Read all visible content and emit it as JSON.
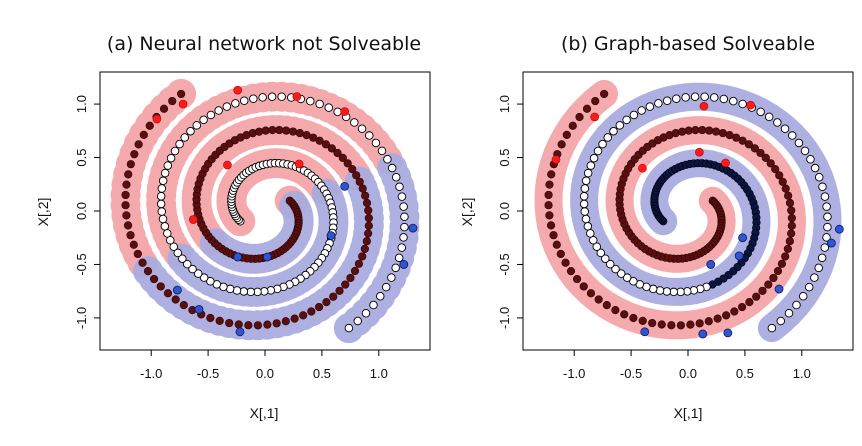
{
  "chart_data": [
    {
      "type": "scatter",
      "title": "(a) Neural network not Solveable",
      "xlabel": "X[,1]",
      "ylabel": "X[,2]",
      "xlim": [
        -1.45,
        1.45
      ],
      "ylim": [
        -1.3,
        1.3
      ],
      "xticks": [
        "-1.0",
        "-0.5",
        "0.0",
        "0.5",
        "1.0"
      ],
      "yticks": [
        "-1.0",
        "-0.5",
        "0.0",
        "0.5",
        "1.0"
      ],
      "xtick_values": [
        -1.0,
        -0.5,
        0.0,
        0.5,
        1.0
      ],
      "ytick_values": [
        -1.0,
        -0.5,
        0.0,
        0.5,
        1.0
      ],
      "region_rule": "linear",
      "region_colors": {
        "class_A": "#f4a6a9",
        "class_B": "#a9acdf"
      },
      "spiral_params": {
        "turns_A": 2.1,
        "turns_B": 2.1,
        "n": 140
      },
      "labeled_A": [
        [
          -0.95,
          0.86
        ],
        [
          -0.72,
          1.0
        ],
        [
          -0.24,
          1.13
        ],
        [
          0.28,
          1.07
        ],
        [
          0.7,
          0.93
        ],
        [
          0.3,
          0.44
        ],
        [
          -0.33,
          0.43
        ],
        [
          -0.63,
          -0.08
        ]
      ],
      "labeled_B": [
        [
          -0.77,
          -0.74
        ],
        [
          -0.58,
          -0.92
        ],
        [
          -0.22,
          -1.13
        ],
        [
          0.7,
          0.23
        ],
        [
          0.58,
          -0.23
        ],
        [
          1.22,
          -0.5
        ],
        [
          1.3,
          -0.16
        ],
        [
          0.02,
          -0.43
        ],
        [
          -0.24,
          -0.43
        ]
      ],
      "series": [
        {
          "name": "A",
          "color": "#5a0e0e",
          "marker": "filled"
        },
        {
          "name": "B",
          "color": "#000000",
          "marker": "open"
        }
      ]
    },
    {
      "type": "scatter",
      "title": "(b) Graph-based Solveable",
      "xlabel": "X[,1]",
      "ylabel": "X[,2]",
      "xlim": [
        -1.45,
        1.45
      ],
      "ylim": [
        -1.3,
        1.3
      ],
      "xticks": [
        "-1.0",
        "-0.5",
        "0.0",
        "0.5",
        "1.0"
      ],
      "yticks": [
        "-1.0",
        "-0.5",
        "0.0",
        "0.5",
        "1.0"
      ],
      "xtick_values": [
        -1.0,
        -0.5,
        0.0,
        0.5,
        1.0
      ],
      "ytick_values": [
        -1.0,
        -0.5,
        0.0,
        0.5,
        1.0
      ],
      "region_rule": "spiral",
      "region_colors": {
        "class_A": "#f4a6a9",
        "class_B": "#a9acdf"
      },
      "spiral_params": {
        "turns_A": 2.1,
        "turns_B": 2.1,
        "n": 140
      },
      "labeled_A": [
        [
          -1.16,
          0.48
        ],
        [
          -0.82,
          0.88
        ],
        [
          0.55,
          0.99
        ],
        [
          0.1,
          0.55
        ],
        [
          0.33,
          0.45
        ],
        [
          -0.4,
          0.4
        ],
        [
          0.14,
          0.98
        ]
      ],
      "labeled_B": [
        [
          -0.38,
          -1.13
        ],
        [
          0.13,
          -1.15
        ],
        [
          0.35,
          -1.14
        ],
        [
          0.8,
          -0.73
        ],
        [
          1.26,
          -0.3
        ],
        [
          1.33,
          -0.17
        ],
        [
          0.45,
          -0.42
        ],
        [
          0.2,
          -0.5
        ],
        [
          0.48,
          -0.25
        ]
      ],
      "series": [
        {
          "name": "A",
          "color": "#5a0e0e",
          "marker": "filled"
        },
        {
          "name": "B",
          "color": "#0b1542",
          "marker": "filled-inner-open-outer"
        }
      ]
    }
  ]
}
